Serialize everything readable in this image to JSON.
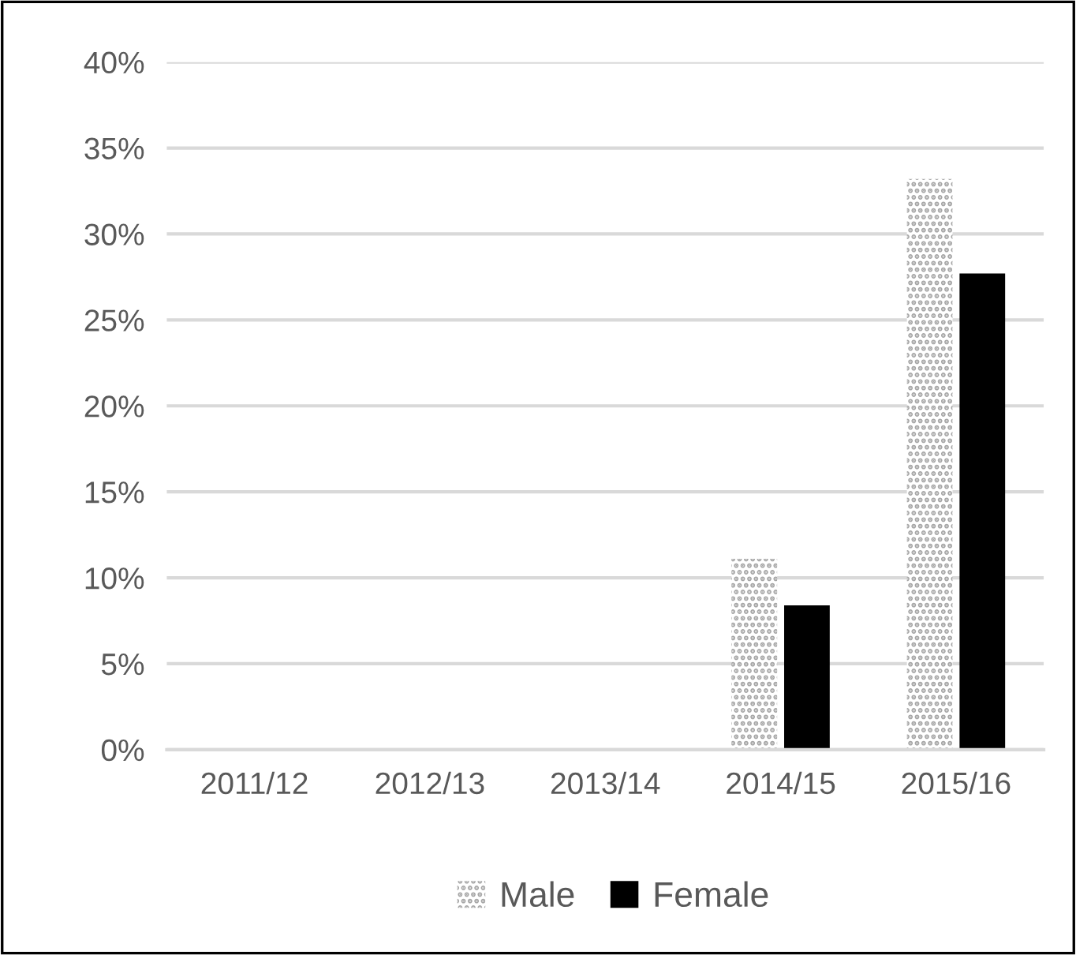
{
  "chart_data": {
    "type": "bar",
    "categories": [
      "2011/12",
      "2012/13",
      "2013/14",
      "2014/15",
      "2015/16"
    ],
    "series": [
      {
        "name": "Male",
        "color": "#a6a6a6",
        "values": [
          0,
          0,
          0,
          11.1,
          33.2
        ]
      },
      {
        "name": "Female",
        "color": "#000000",
        "values": [
          0,
          0,
          0,
          8.4,
          27.7
        ]
      }
    ],
    "ylim": [
      0,
      40
    ],
    "yticks": [
      {
        "value": 0,
        "label": "0%"
      },
      {
        "value": 5,
        "label": "5%"
      },
      {
        "value": 10,
        "label": "10%"
      },
      {
        "value": 15,
        "label": "15%"
      },
      {
        "value": 20,
        "label": "20%"
      },
      {
        "value": 25,
        "label": "25%"
      },
      {
        "value": 30,
        "label": "30%"
      },
      {
        "value": 35,
        "label": "35%"
      },
      {
        "value": 40,
        "label": "40%"
      }
    ],
    "grid": "y",
    "legend": "bottom"
  }
}
